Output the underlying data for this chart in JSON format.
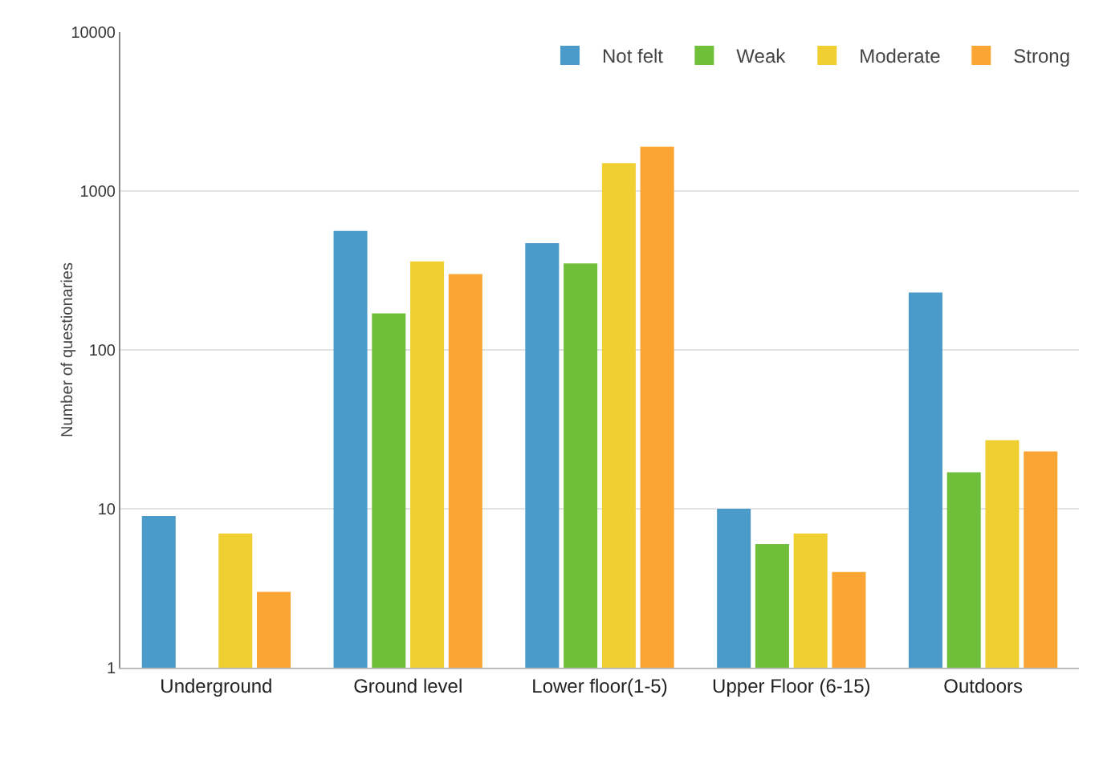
{
  "chart_data": {
    "type": "bar",
    "ylabel": "Number of questionaries",
    "categories": [
      "Underground",
      "Ground level",
      "Lower floor(1-5)",
      "Upper Floor (6-15)",
      "Outdoors"
    ],
    "series": [
      {
        "name": "Not felt",
        "color": "#4a9bca",
        "values": [
          9,
          560,
          470,
          10,
          230
        ]
      },
      {
        "name": "Weak",
        "color": "#6fbf3a",
        "values": [
          null,
          170,
          350,
          6,
          17
        ]
      },
      {
        "name": "Moderate",
        "color": "#f0cf33",
        "values": [
          7,
          360,
          1500,
          7,
          27
        ]
      },
      {
        "name": "Strong",
        "color": "#fba535",
        "values": [
          3,
          300,
          1900,
          4,
          23
        ]
      }
    ],
    "log": true,
    "ylim": [
      1,
      10000
    ],
    "yticks": [
      1,
      10,
      100,
      1000,
      10000
    ],
    "grid": "y",
    "legend": "top right"
  }
}
